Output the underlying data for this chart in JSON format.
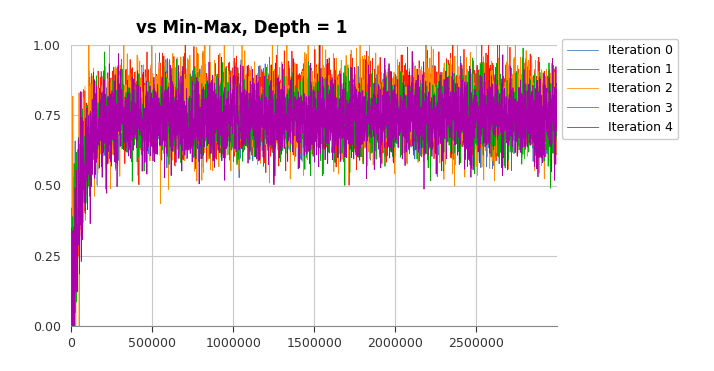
{
  "title": "vs Min-Max, Depth = 1",
  "xlim": [
    0,
    3000000
  ],
  "ylim": [
    0,
    1.0
  ],
  "yticks": [
    0,
    0.25,
    0.5,
    0.75,
    1
  ],
  "xticks": [
    0,
    500000,
    1000000,
    1500000,
    2000000,
    2500000
  ],
  "num_points": 3000,
  "x_max": 3000000,
  "iterations": [
    {
      "label": "Iteration 0",
      "color": "#4472C4",
      "seed": 10,
      "mean": 0.76,
      "std": 0.07
    },
    {
      "label": "Iteration 1",
      "color": "#FF2200",
      "seed": 11,
      "mean": 0.78,
      "std": 0.08
    },
    {
      "label": "Iteration 2",
      "color": "#FF8C00",
      "seed": 12,
      "mean": 0.77,
      "std": 0.09
    },
    {
      "label": "Iteration 3",
      "color": "#00AA00",
      "seed": 13,
      "mean": 0.74,
      "std": 0.07
    },
    {
      "label": "Iteration 4",
      "color": "#AA00AA",
      "seed": 14,
      "mean": 0.74,
      "std": 0.075
    }
  ],
  "background_color": "#FFFFFF",
  "grid_color": "#C8C8C8",
  "title_fontsize": 12,
  "legend_fontsize": 9,
  "tick_fontsize": 9,
  "linewidth": 0.55
}
